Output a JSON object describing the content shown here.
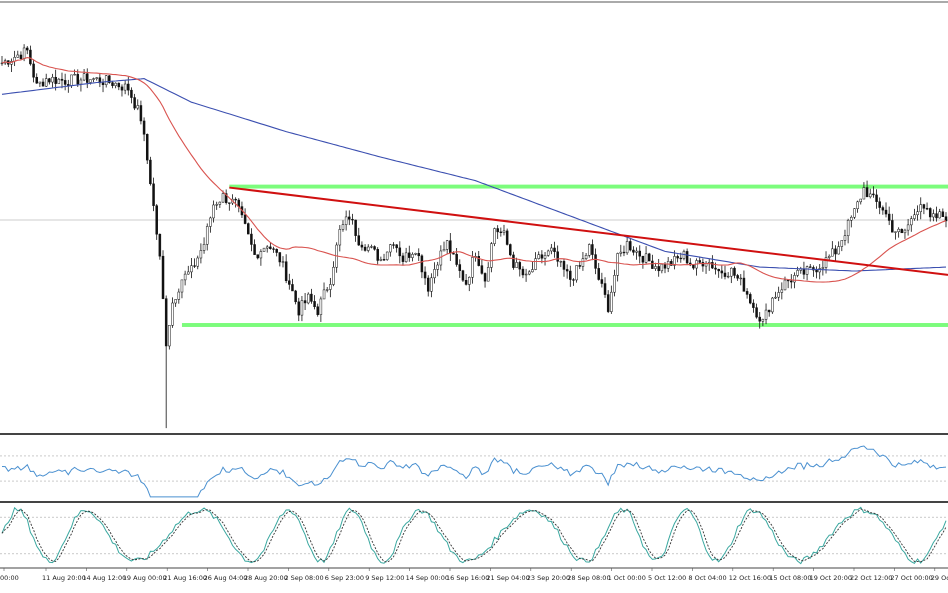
{
  "chart_data": {
    "type": "candlestick",
    "title": "",
    "colors": {
      "candle": "#111111",
      "ma_fast": "#d9534f",
      "ma_slow": "#3b4fb0",
      "trendline": "#d01010",
      "zone": "#7CFC7C",
      "rsi": "#4a90d0",
      "stoch_main": "#3aa8a0",
      "stoch_signal": "#333333",
      "panel_border": "#555555",
      "grid": "#aaaaaa"
    },
    "x_tick_labels": [
      "00:00",
      "11 Aug 20:00",
      "14 Aug 12:00",
      "19 Aug 00:00",
      "21 Aug 16:00",
      "26 Aug 04:00",
      "28 Aug 20:00",
      "2 Sep 08:00",
      "6 Sep 23:00",
      "9 Sep 12:00",
      "14 Sep 00:00",
      "16 Sep 16:00",
      "21 Sep 04:00",
      "23 Sep 20:00",
      "28 Sep 08:00",
      "1 Oct 00:00",
      "5 Oct 12:00",
      "8 Oct 04:00",
      "12 Oct 16:00",
      "15 Oct 08:00",
      "19 Oct 20:00",
      "22 Oct 12:00",
      "27 Oct 00:00",
      "29 Oct"
    ],
    "price_levels": {
      "resistance_zone": [
        76.0,
        78.0
      ],
      "support_zone": [
        5.5,
        7.5
      ],
      "crosshair": 60.0,
      "trendline_start": 76.5,
      "trendline_end": 32.0
    },
    "panels": [
      {
        "name": "price",
        "ylim": [
          -48,
          170
        ]
      },
      {
        "name": "rsi",
        "ylim": [
          0,
          100
        ],
        "levels": [
          30,
          70
        ]
      },
      {
        "name": "stochastic",
        "ylim": [
          0,
          100
        ],
        "levels": [
          20,
          80
        ]
      }
    ]
  }
}
